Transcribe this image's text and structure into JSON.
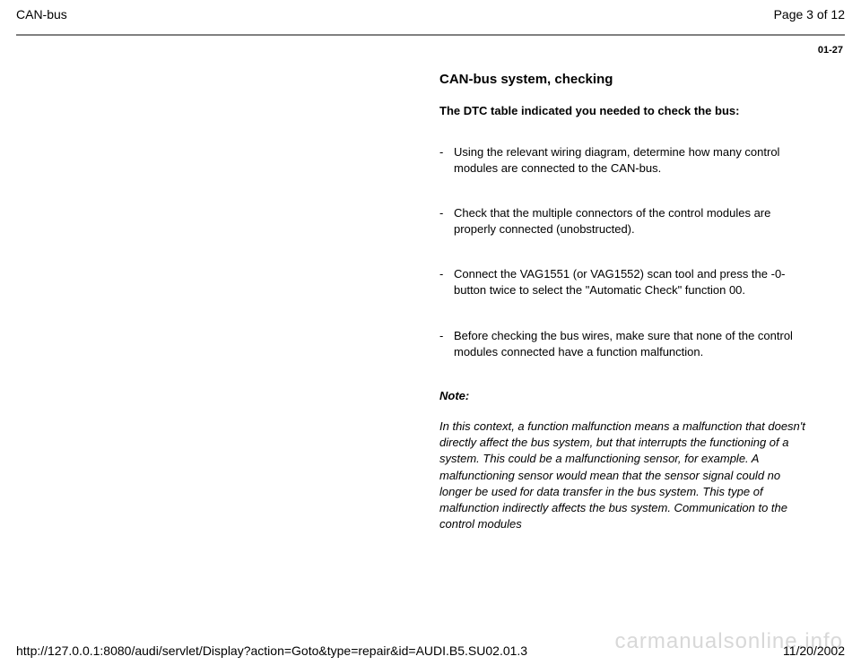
{
  "header": {
    "title": "CAN-bus",
    "page_info": "Page 3 of 12"
  },
  "page_code": "01-27",
  "section": {
    "title": "CAN-bus system, checking",
    "subtitle": "The DTC table indicated you needed to check the bus:",
    "items": [
      "Using the relevant wiring diagram, determine how many control modules are connected to the CAN-bus.",
      "Check that the multiple connectors of the control modules are properly connected (unobstructed).",
      "Connect the VAG1551 (or VAG1552) scan tool and press the -0- button twice to select the \"Automatic Check\" function 00.",
      "Before checking the bus wires, make sure that none of the control modules connected have a function malfunction."
    ]
  },
  "note": {
    "label": "Note:",
    "body": "In this context, a function malfunction means a malfunction that doesn't directly affect the bus system, but that interrupts the functioning of a system. This could be a malfunctioning sensor, for example. A malfunctioning sensor would mean that the sensor signal could no longer be used for data transfer in the bus system. This type of malfunction indirectly affects the bus system. Communication to the control modules"
  },
  "footer": {
    "url": "http://127.0.0.1:8080/audi/servlet/Display?action=Goto&type=repair&id=AUDI.B5.SU02.01.3",
    "date": "11/20/2002"
  },
  "watermark": "carmanualsonline.info"
}
